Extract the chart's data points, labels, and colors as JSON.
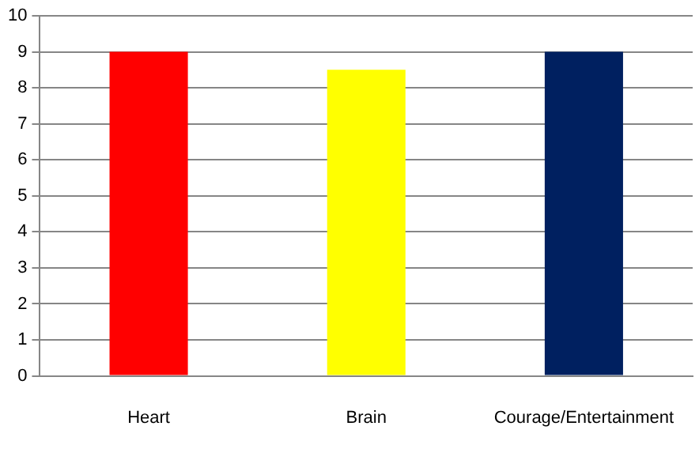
{
  "chart_data": {
    "type": "bar",
    "categories": [
      "Heart",
      "Brain",
      "Courage/Entertainment"
    ],
    "values": [
      9,
      8.5,
      9
    ],
    "colors": [
      "#ff0000",
      "#ffff00",
      "#002060"
    ],
    "ylim": [
      0,
      10
    ],
    "yticks": [
      0,
      1,
      2,
      3,
      4,
      5,
      6,
      7,
      8,
      9,
      10
    ],
    "grid": "y",
    "legend": false
  }
}
